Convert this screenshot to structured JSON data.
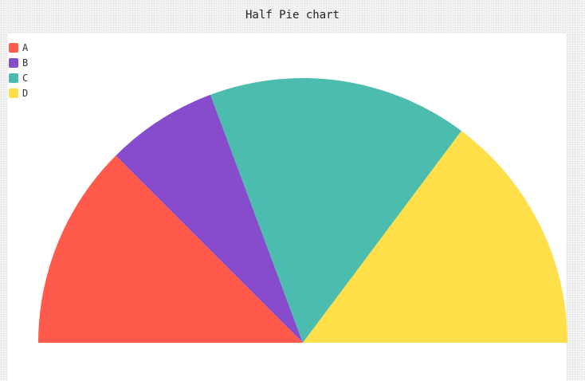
{
  "chart_data": {
    "type": "pie",
    "variant": "half-pie",
    "title": "Half Pie chart",
    "categories": [
      "A",
      "B",
      "C",
      "D"
    ],
    "values": [
      22,
      12,
      28,
      26
    ],
    "colors": [
      "#ff5a4b",
      "#874ccc",
      "#4bbcae",
      "#ffe04a"
    ],
    "legend_position": "top-left"
  }
}
